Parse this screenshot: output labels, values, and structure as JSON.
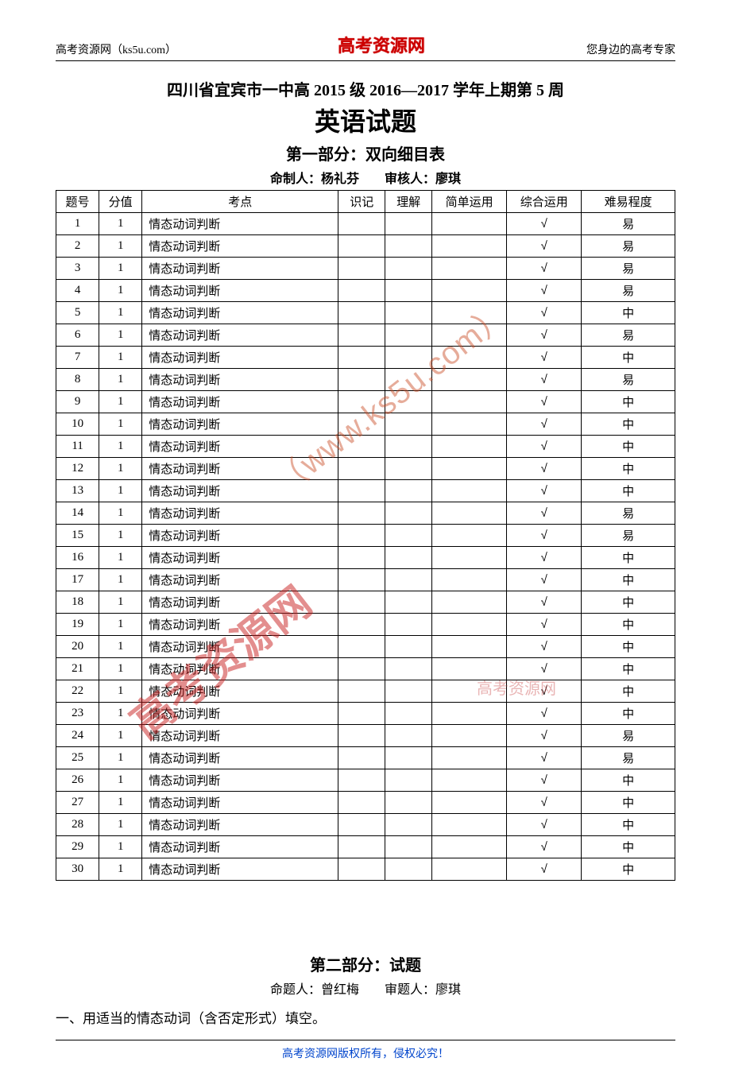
{
  "header": {
    "left": "高考资源网（ks5u.com）",
    "center": "高考资源网",
    "right": "您身边的高考专家"
  },
  "title_line1": "四川省宜宾市一中高 2015 级 2016—2017 学年上期第 5 周",
  "title_line2": "英语试题",
  "section1_title": "第一部分：双向细目表",
  "section1_authors": "命制人：杨礼芬　　审核人：廖琪",
  "table": {
    "columns": [
      "题号",
      "分值",
      "考点",
      "识记",
      "理解",
      "简单运用",
      "综合运用",
      "难易程度"
    ],
    "topic": "情态动词判断",
    "tick": "√",
    "rows": [
      {
        "num": "1",
        "score": "1",
        "diff": "易"
      },
      {
        "num": "2",
        "score": "1",
        "diff": "易"
      },
      {
        "num": "3",
        "score": "1",
        "diff": "易"
      },
      {
        "num": "4",
        "score": "1",
        "diff": "易"
      },
      {
        "num": "5",
        "score": "1",
        "diff": "中"
      },
      {
        "num": "6",
        "score": "1",
        "diff": "易"
      },
      {
        "num": "7",
        "score": "1",
        "diff": "中"
      },
      {
        "num": "8",
        "score": "1",
        "diff": "易"
      },
      {
        "num": "9",
        "score": "1",
        "diff": "中"
      },
      {
        "num": "10",
        "score": "1",
        "diff": "中"
      },
      {
        "num": "11",
        "score": "1",
        "diff": "中"
      },
      {
        "num": "12",
        "score": "1",
        "diff": "中"
      },
      {
        "num": "13",
        "score": "1",
        "diff": "中"
      },
      {
        "num": "14",
        "score": "1",
        "diff": "易"
      },
      {
        "num": "15",
        "score": "1",
        "diff": "易"
      },
      {
        "num": "16",
        "score": "1",
        "diff": "中"
      },
      {
        "num": "17",
        "score": "1",
        "diff": "中"
      },
      {
        "num": "18",
        "score": "1",
        "diff": "中"
      },
      {
        "num": "19",
        "score": "1",
        "diff": "中"
      },
      {
        "num": "20",
        "score": "1",
        "diff": "中"
      },
      {
        "num": "21",
        "score": "1",
        "diff": "中"
      },
      {
        "num": "22",
        "score": "1",
        "diff": "中"
      },
      {
        "num": "23",
        "score": "1",
        "diff": "中"
      },
      {
        "num": "24",
        "score": "1",
        "diff": "易"
      },
      {
        "num": "25",
        "score": "1",
        "diff": "易"
      },
      {
        "num": "26",
        "score": "1",
        "diff": "中"
      },
      {
        "num": "27",
        "score": "1",
        "diff": "中"
      },
      {
        "num": "28",
        "score": "1",
        "diff": "中"
      },
      {
        "num": "29",
        "score": "1",
        "diff": "中"
      },
      {
        "num": "30",
        "score": "1",
        "diff": "中"
      }
    ]
  },
  "section2_title": "第二部分：试题",
  "section2_authors": "命题人：曾红梅　　审题人：廖琪",
  "question1": "一、用适当的情态动词（含否定形式）填空。",
  "footer": "高考资源网版权所有，侵权必究！",
  "watermark_url": "（www.ks5u.com）",
  "watermark_name": "高考资源网",
  "watermark_sub": "高考资源网"
}
